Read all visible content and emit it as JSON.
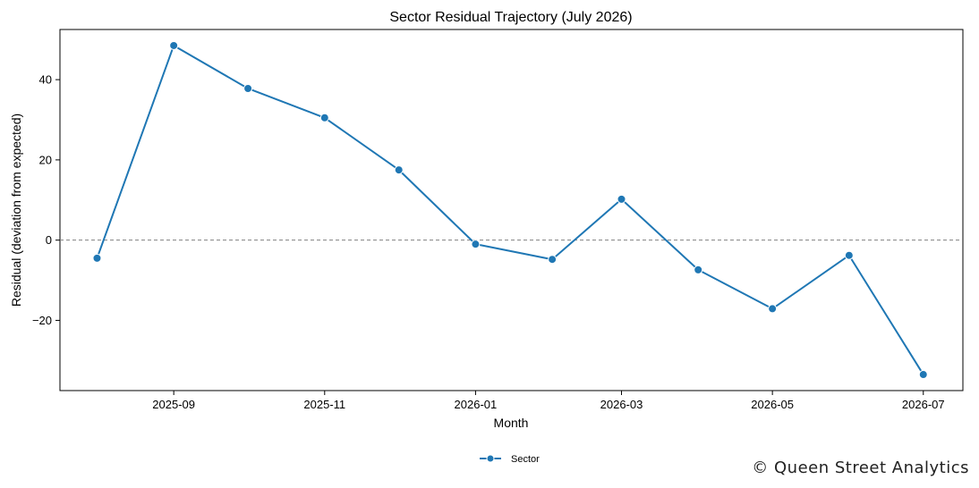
{
  "chart_data": {
    "type": "line",
    "title": "Sector Residual Trajectory (July 2026)",
    "xlabel": "Month",
    "ylabel": "Residual (deviation from expected)",
    "x": [
      "2025-08-01",
      "2025-09-01",
      "2025-10-01",
      "2025-11-01",
      "2025-12-01",
      "2026-01-01",
      "2026-02-01",
      "2026-03-01",
      "2026-04-01",
      "2026-05-01",
      "2026-06-01",
      "2026-07-01"
    ],
    "x_tick_labels": [
      "2025-09",
      "2025-11",
      "2026-01",
      "2026-03",
      "2026-05",
      "2026-07"
    ],
    "x_tick_dates": [
      "2025-09-01",
      "2025-11-01",
      "2026-01-01",
      "2026-03-01",
      "2026-05-01",
      "2026-07-01"
    ],
    "xlim": [
      "2025-07-17",
      "2026-07-17"
    ],
    "y_ticks": [
      -20,
      0,
      20,
      40
    ],
    "y_tick_labels": [
      "−20",
      "0",
      "20",
      "40"
    ],
    "ylim": [
      -37.5,
      52.5
    ],
    "reference_line": {
      "y": 0,
      "style": "dashed",
      "color": "#808080"
    },
    "series": [
      {
        "name": "Sector",
        "color": "#1f77b4",
        "marker": "circle",
        "values": [
          -4.5,
          48.5,
          37.8,
          30.5,
          17.5,
          -1.0,
          -4.8,
          10.2,
          -7.4,
          -17.1,
          -3.8,
          -33.5
        ]
      }
    ],
    "legend": {
      "position": "bottom-center",
      "entries": [
        "Sector"
      ]
    },
    "grid": false
  },
  "watermark": {
    "text": "© Queen Street Analytics"
  }
}
